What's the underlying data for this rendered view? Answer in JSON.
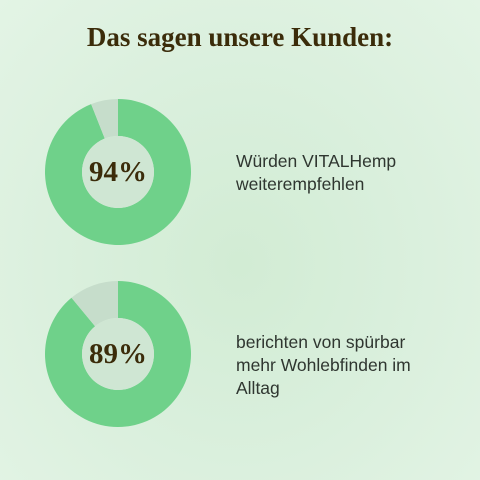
{
  "headline": "Das sagen unsere Kunden:",
  "colors": {
    "title": "#3b2c0a",
    "ring_filled": "#6fd18a",
    "ring_remainder": "#c6ddcb",
    "center": "#cfe6d3",
    "value_text": "#3b2c0a"
  },
  "chart_data": [
    {
      "type": "pie",
      "values": [
        94,
        6
      ],
      "value_label": "94%",
      "caption": "Würden VITALHemp weiterempfehlen"
    },
    {
      "type": "pie",
      "values": [
        89,
        11
      ],
      "value_label": "89%",
      "caption": "berichten von spürbar mehr Wohlebfinden im Alltag"
    }
  ]
}
